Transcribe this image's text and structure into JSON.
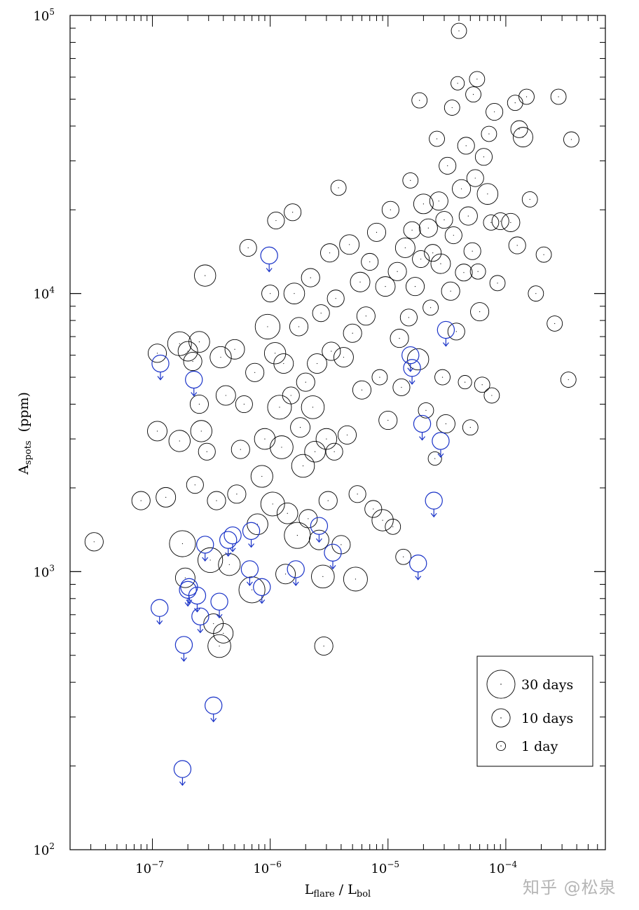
{
  "chart_data": {
    "type": "scatter",
    "x_scale": "log",
    "y_scale": "log",
    "xlim": [
      2e-08,
      0.0007
    ],
    "ylim": [
      100,
      100000
    ],
    "xlabel": {
      "main": "L",
      "sub1": "flare",
      "sep": " / ",
      "main2": "L",
      "sub2": "bol"
    },
    "ylabel": {
      "main": "A",
      "sub": "spots",
      "unit": "(ppm)"
    },
    "x_ticks": [
      {
        "value": 1e-07,
        "base": "10",
        "exp": "−7"
      },
      {
        "value": 1e-06,
        "base": "10",
        "exp": "−6"
      },
      {
        "value": 1e-05,
        "base": "10",
        "exp": "−5"
      },
      {
        "value": 0.0001,
        "base": "10",
        "exp": "−4"
      }
    ],
    "y_ticks": [
      {
        "value": 100,
        "base": "10",
        "exp": "2"
      },
      {
        "value": 1000,
        "base": "10",
        "exp": "3"
      },
      {
        "value": 10000,
        "base": "10",
        "exp": "4"
      },
      {
        "value": 100000,
        "base": "10",
        "exp": "5"
      }
    ],
    "marker_size_encodes": "rotation period (days)",
    "legend": {
      "position": "bottom-right",
      "entries": [
        {
          "label": "30 days",
          "period": 30
        },
        {
          "label": "10 days",
          "period": 10
        },
        {
          "label": "1 day",
          "period": 1
        }
      ]
    },
    "colors": {
      "detections": "#000000",
      "upper_limits": "#1a33c8"
    },
    "series": [
      {
        "name": "",
        "color": "#000000",
        "points": [
          [
            3.2e-08,
            1280,
            10
          ],
          [
            8e-08,
            1800,
            10
          ],
          [
            1.1e-07,
            3200,
            12
          ],
          [
            1.1e-07,
            6100,
            10
          ],
          [
            1.3e-07,
            1850,
            12
          ],
          [
            1.7e-07,
            6600,
            20
          ],
          [
            1.8e-07,
            1260,
            25
          ],
          [
            1.7e-07,
            2950,
            15
          ],
          [
            1.9e-07,
            950,
            12
          ],
          [
            2e-07,
            6200,
            12
          ],
          [
            2.2e-07,
            5700,
            10
          ],
          [
            2.3e-07,
            2050,
            8
          ],
          [
            2.5e-07,
            4000,
            10
          ],
          [
            2.5e-07,
            6700,
            14
          ],
          [
            2.6e-07,
            3200,
            15
          ],
          [
            2.8e-07,
            11600,
            15
          ],
          [
            2.9e-07,
            2700,
            8
          ],
          [
            3.1e-07,
            1100,
            22
          ],
          [
            3.3e-07,
            650,
            12
          ],
          [
            3.5e-07,
            1800,
            10
          ],
          [
            3.7e-07,
            540,
            18
          ],
          [
            3.8e-07,
            5900,
            15
          ],
          [
            4e-07,
            600,
            12
          ],
          [
            4.2e-07,
            4300,
            12
          ],
          [
            4.5e-07,
            1060,
            16
          ],
          [
            5e-07,
            6300,
            12
          ],
          [
            5.2e-07,
            1900,
            10
          ],
          [
            5.6e-07,
            2750,
            10
          ],
          [
            6e-07,
            4000,
            8
          ],
          [
            6.5e-07,
            14600,
            8
          ],
          [
            7e-07,
            860,
            25
          ],
          [
            7.4e-07,
            5200,
            10
          ],
          [
            7.8e-07,
            1480,
            14
          ],
          [
            8.5e-07,
            2200,
            16
          ],
          [
            9e-07,
            3000,
            14
          ],
          [
            9.5e-07,
            7600,
            22
          ],
          [
            1e-06,
            10000,
            8
          ],
          [
            1.05e-06,
            1750,
            20
          ],
          [
            1.1e-06,
            6100,
            15
          ],
          [
            1.12e-06,
            18300,
            8
          ],
          [
            1.2e-06,
            3900,
            20
          ],
          [
            1.25e-06,
            2800,
            18
          ],
          [
            1.3e-06,
            5600,
            12
          ],
          [
            1.35e-06,
            980,
            12
          ],
          [
            1.4e-06,
            1620,
            14
          ],
          [
            1.5e-06,
            4300,
            8
          ],
          [
            1.55e-06,
            19600,
            8
          ],
          [
            1.6e-06,
            10000,
            14
          ],
          [
            1.7e-06,
            1350,
            25
          ],
          [
            1.75e-06,
            7600,
            10
          ],
          [
            1.8e-06,
            3300,
            12
          ],
          [
            1.9e-06,
            2400,
            18
          ],
          [
            2e-06,
            4800,
            10
          ],
          [
            2.1e-06,
            1550,
            10
          ],
          [
            2.2e-06,
            11400,
            10
          ],
          [
            2.3e-06,
            3900,
            18
          ],
          [
            2.4e-06,
            2700,
            14
          ],
          [
            2.5e-06,
            5600,
            12
          ],
          [
            2.6e-06,
            1300,
            12
          ],
          [
            2.7e-06,
            8500,
            8
          ],
          [
            2.8e-06,
            960,
            18
          ],
          [
            2.85e-06,
            540,
            10
          ],
          [
            3e-06,
            3000,
            14
          ],
          [
            3.1e-06,
            1800,
            10
          ],
          [
            3.2e-06,
            14000,
            10
          ],
          [
            3.3e-06,
            6200,
            10
          ],
          [
            3.5e-06,
            2700,
            8
          ],
          [
            3.6e-06,
            9600,
            8
          ],
          [
            3.8e-06,
            24000,
            6
          ],
          [
            4e-06,
            1250,
            10
          ],
          [
            4.2e-06,
            5900,
            12
          ],
          [
            4.5e-06,
            3100,
            10
          ],
          [
            4.7e-06,
            15000,
            12
          ],
          [
            5e-06,
            7200,
            10
          ],
          [
            5.3e-06,
            940,
            20
          ],
          [
            5.5e-06,
            1900,
            8
          ],
          [
            5.8e-06,
            11000,
            12
          ],
          [
            6e-06,
            4500,
            10
          ],
          [
            6.5e-06,
            8300,
            10
          ],
          [
            7e-06,
            13000,
            8
          ],
          [
            7.5e-06,
            1680,
            8
          ],
          [
            8e-06,
            16600,
            10
          ],
          [
            8.5e-06,
            5000,
            6
          ],
          [
            9e-06,
            1530,
            15
          ],
          [
            9.5e-06,
            10600,
            12
          ],
          [
            1e-05,
            3500,
            10
          ],
          [
            1.05e-05,
            20000,
            8
          ],
          [
            1.1e-05,
            1450,
            6
          ],
          [
            1.2e-05,
            12000,
            10
          ],
          [
            1.25e-05,
            6900,
            10
          ],
          [
            1.3e-05,
            4600,
            8
          ],
          [
            1.35e-05,
            1130,
            6
          ],
          [
            1.4e-05,
            14600,
            12
          ],
          [
            1.5e-05,
            8200,
            8
          ],
          [
            1.55e-05,
            25500,
            6
          ],
          [
            1.6e-05,
            16900,
            8
          ],
          [
            1.7e-05,
            10600,
            10
          ],
          [
            1.8e-05,
            5800,
            15
          ],
          [
            1.85e-05,
            49500,
            6
          ],
          [
            1.9e-05,
            13300,
            8
          ],
          [
            2e-05,
            21000,
            12
          ],
          [
            2.1e-05,
            3800,
            6
          ],
          [
            2.2e-05,
            17200,
            10
          ],
          [
            2.3e-05,
            8900,
            6
          ],
          [
            2.4e-05,
            14000,
            8
          ],
          [
            2.5e-05,
            2550,
            4
          ],
          [
            2.6e-05,
            36000,
            6
          ],
          [
            2.7e-05,
            21500,
            10
          ],
          [
            2.8e-05,
            12800,
            12
          ],
          [
            2.9e-05,
            5000,
            6
          ],
          [
            3e-05,
            18400,
            8
          ],
          [
            3.1e-05,
            3400,
            10
          ],
          [
            3.2e-05,
            28800,
            8
          ],
          [
            3.4e-05,
            10200,
            10
          ],
          [
            3.5e-05,
            46600,
            6
          ],
          [
            3.6e-05,
            16200,
            8
          ],
          [
            3.8e-05,
            7300,
            8
          ],
          [
            3.9e-05,
            57000,
            4
          ],
          [
            4e-05,
            88000,
            6
          ],
          [
            4.2e-05,
            23800,
            10
          ],
          [
            4.4e-05,
            11900,
            8
          ],
          [
            4.5e-05,
            4800,
            4
          ],
          [
            4.6e-05,
            34000,
            8
          ],
          [
            4.8e-05,
            19000,
            10
          ],
          [
            5e-05,
            3300,
            6
          ],
          [
            5.2e-05,
            14200,
            8
          ],
          [
            5.3e-05,
            52000,
            6
          ],
          [
            5.5e-05,
            26000,
            8
          ],
          [
            5.7e-05,
            59000,
            6
          ],
          [
            5.8e-05,
            12000,
            6
          ],
          [
            6e-05,
            8600,
            10
          ],
          [
            6.3e-05,
            4700,
            6
          ],
          [
            6.5e-05,
            31000,
            8
          ],
          [
            7e-05,
            22800,
            14
          ],
          [
            7.2e-05,
            37500,
            6
          ],
          [
            7.5e-05,
            18000,
            6
          ],
          [
            7.6e-05,
            4300,
            6
          ],
          [
            8e-05,
            45000,
            8
          ],
          [
            8.5e-05,
            10900,
            6
          ],
          [
            9e-05,
            18200,
            8
          ],
          [
            0.00011,
            18000,
            10
          ],
          [
            0.00012,
            48500,
            6
          ],
          [
            0.000125,
            14900,
            8
          ],
          [
            0.00013,
            39000,
            8
          ],
          [
            0.00014,
            36500,
            12
          ],
          [
            0.00015,
            51000,
            6
          ],
          [
            0.00016,
            21800,
            6
          ],
          [
            0.00018,
            10000,
            6
          ],
          [
            0.00021,
            13800,
            6
          ],
          [
            0.00026,
            7800,
            6
          ],
          [
            0.00028,
            51000,
            6
          ],
          [
            0.00034,
            4900,
            6
          ],
          [
            0.00036,
            35800,
            6
          ]
        ]
      },
      {
        "name": "",
        "color": "#1a33c8",
        "upper_limit": true,
        "points": [
          [
            1.17e-07,
            5600,
            8
          ],
          [
            1.15e-07,
            740,
            8
          ],
          [
            1.8e-07,
            195,
            8
          ],
          [
            1.85e-07,
            545,
            8
          ],
          [
            2e-07,
            860,
            8
          ],
          [
            2.05e-07,
            880,
            8
          ],
          [
            2.25e-07,
            4900,
            8
          ],
          [
            2.4e-07,
            820,
            8
          ],
          [
            2.55e-07,
            690,
            8
          ],
          [
            2.8e-07,
            1250,
            8
          ],
          [
            3.3e-07,
            330,
            8
          ],
          [
            3.7e-07,
            780,
            8
          ],
          [
            4.4e-07,
            1300,
            8
          ],
          [
            4.8e-07,
            1350,
            8
          ],
          [
            6.7e-07,
            1020,
            8
          ],
          [
            6.9e-07,
            1400,
            8
          ],
          [
            8.5e-07,
            880,
            8
          ],
          [
            9.8e-07,
            13700,
            8
          ],
          [
            1.65e-06,
            1020,
            8
          ],
          [
            2.6e-06,
            1460,
            8
          ],
          [
            3.4e-06,
            1170,
            8
          ],
          [
            1.55e-05,
            6000,
            8
          ],
          [
            1.6e-05,
            5400,
            8
          ],
          [
            1.8e-05,
            1070,
            8
          ],
          [
            1.95e-05,
            3400,
            8
          ],
          [
            2.45e-05,
            1800,
            8
          ],
          [
            2.8e-05,
            2950,
            8
          ],
          [
            3.1e-05,
            7400,
            8
          ]
        ]
      }
    ]
  },
  "watermark": "知乎 @松泉"
}
